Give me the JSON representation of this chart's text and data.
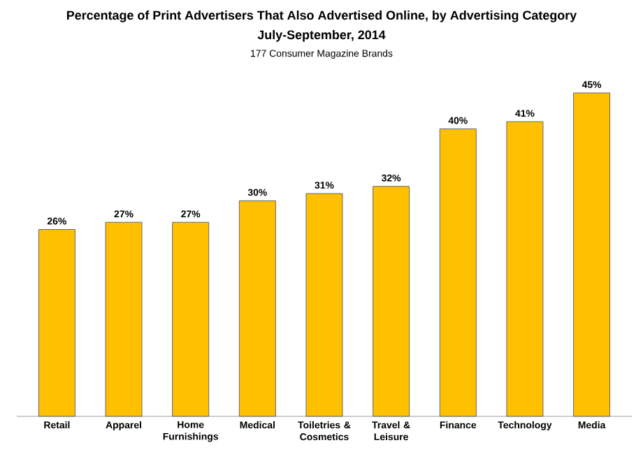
{
  "chart_data": {
    "type": "bar",
    "title": "Percentage of Print Advertisers That Also Advertised Online, by Advertising Category",
    "subtitle": "July-September, 2014",
    "annotations": [
      "177 Consumer Magazine Brands"
    ],
    "categories": [
      "Retail",
      "Apparel",
      "Home Furnishings",
      "Medical",
      "Toiletries & Cosmetics",
      "Travel & Leisure",
      "Finance",
      "Technology",
      "Media"
    ],
    "values": [
      26,
      27,
      27,
      30,
      31,
      32,
      40,
      41,
      45
    ],
    "value_labels": [
      "26%",
      "27%",
      "27%",
      "30%",
      "31%",
      "32%",
      "40%",
      "41%",
      "45%"
    ],
    "color": "#ffc000"
  }
}
